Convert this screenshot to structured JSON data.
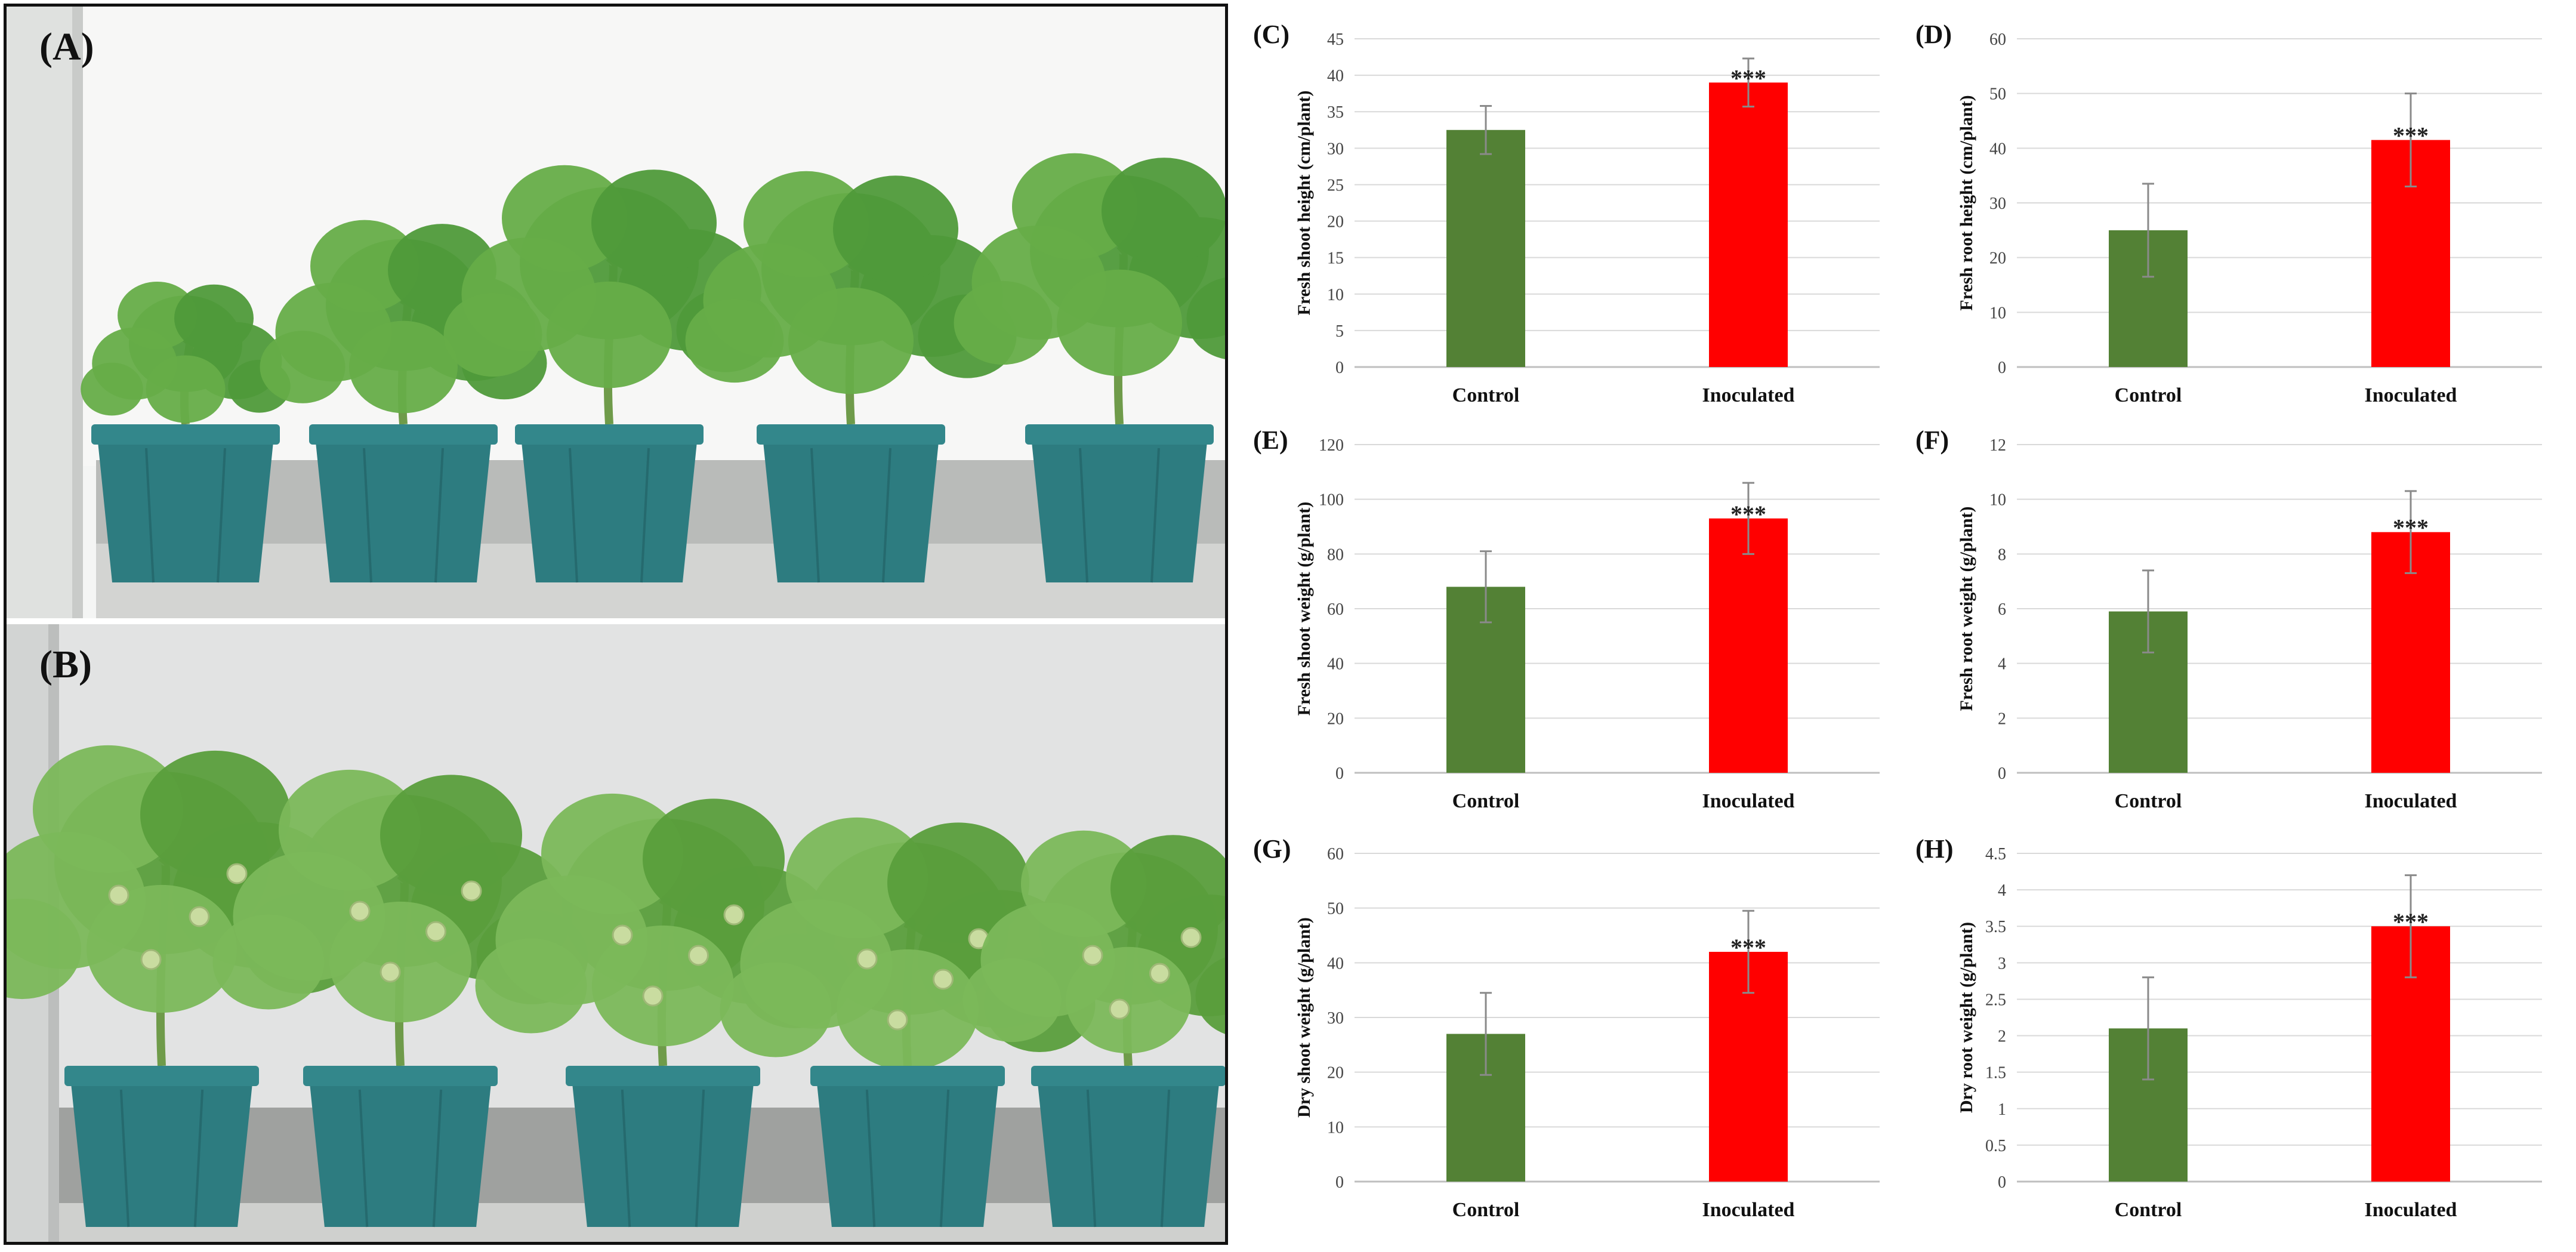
{
  "photos": [
    {
      "label": "(A)"
    },
    {
      "label": "(B)"
    }
  ],
  "colors": {
    "control": "#538135",
    "inoculated": "#ff0000",
    "grid": "#d9d9d9",
    "axis": "#bfbfbf"
  },
  "chart_data": [
    {
      "type": "bar",
      "panel": "(C)",
      "categories": [
        "Control",
        "Inoculated"
      ],
      "values": [
        32.5,
        39
      ],
      "errors": [
        3.3,
        3.3
      ],
      "significance": [
        "",
        "***"
      ],
      "ylabel": "Fresh shoot height (cm/plant)",
      "ylim": [
        0,
        45
      ],
      "yticks": [
        0,
        5,
        10,
        15,
        20,
        25,
        30,
        35,
        40,
        45
      ],
      "grid": true
    },
    {
      "type": "bar",
      "panel": "(D)",
      "categories": [
        "Control",
        "Inoculated"
      ],
      "values": [
        25,
        41.5
      ],
      "errors": [
        8.5,
        8.5
      ],
      "significance": [
        "",
        "***"
      ],
      "ylabel": "Fresh root height (cm/plant)",
      "ylim": [
        0,
        60
      ],
      "yticks": [
        0,
        10,
        20,
        30,
        40,
        50,
        60
      ],
      "grid": true
    },
    {
      "type": "bar",
      "panel": "(E)",
      "categories": [
        "Control",
        "Inoculated"
      ],
      "values": [
        68,
        93
      ],
      "errors": [
        13,
        13
      ],
      "significance": [
        "",
        "***"
      ],
      "ylabel": "Fresh shoot weight (g/plant)",
      "ylim": [
        0,
        120
      ],
      "yticks": [
        0,
        20,
        40,
        60,
        80,
        100,
        120
      ],
      "grid": true
    },
    {
      "type": "bar",
      "panel": "(F)",
      "categories": [
        "Control",
        "Inoculated"
      ],
      "values": [
        5.9,
        8.8
      ],
      "errors": [
        1.5,
        1.5
      ],
      "significance": [
        "",
        "***"
      ],
      "ylabel": "Fresh root weight (g/plant)",
      "ylim": [
        0,
        12
      ],
      "yticks": [
        0,
        2,
        4,
        6,
        8,
        10,
        12
      ],
      "grid": true
    },
    {
      "type": "bar",
      "panel": "(G)",
      "categories": [
        "Control",
        "Inoculated"
      ],
      "values": [
        27,
        42
      ],
      "errors": [
        7.5,
        7.5
      ],
      "significance": [
        "",
        "***"
      ],
      "ylabel": "Dry shoot weight (g/plant)",
      "ylim": [
        0,
        60
      ],
      "yticks": [
        0,
        10,
        20,
        30,
        40,
        50,
        60
      ],
      "grid": true
    },
    {
      "type": "bar",
      "panel": "(H)",
      "categories": [
        "Control",
        "Inoculated"
      ],
      "values": [
        2.1,
        3.5
      ],
      "errors": [
        0.7,
        0.7
      ],
      "significance": [
        "",
        "***"
      ],
      "ylabel": "Dry root weight (g/plant)",
      "ylim": [
        0,
        4.5
      ],
      "yticks": [
        "0",
        "0.5",
        "1",
        "1.5",
        "2",
        "2.5",
        "3",
        "3.5",
        "4",
        "4.5"
      ],
      "grid": true
    }
  ]
}
